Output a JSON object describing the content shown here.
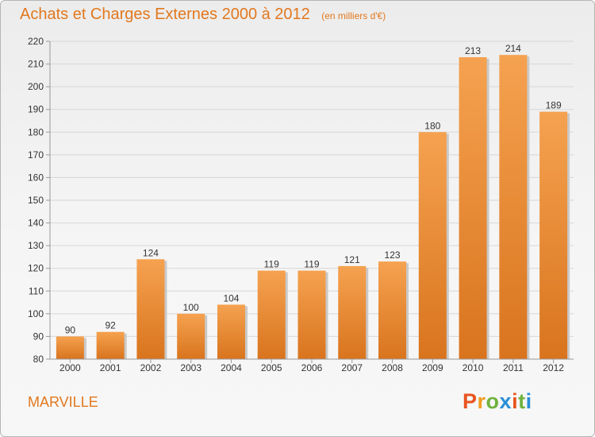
{
  "chart_data": {
    "type": "bar",
    "title": "Achats et Charges Externes 2000 à 2012",
    "subtitle": "(en milliers d'€)",
    "categories": [
      "2000",
      "2001",
      "2002",
      "2003",
      "2004",
      "2005",
      "2006",
      "2007",
      "2008",
      "2009",
      "2010",
      "2011",
      "2012"
    ],
    "values": [
      90,
      92,
      124,
      100,
      104,
      119,
      119,
      121,
      123,
      180,
      213,
      214,
      189
    ],
    "ylim": [
      80,
      220
    ],
    "yticks": [
      80,
      90,
      100,
      110,
      120,
      130,
      140,
      150,
      160,
      170,
      180,
      190,
      200,
      210,
      220
    ],
    "grid": true,
    "bar_color_top": "#f5a250",
    "bar_color_bottom": "#d9741e"
  },
  "footer": {
    "place": "MARVILLE",
    "logo_letters": [
      {
        "ch": "P",
        "color": "#e8541f"
      },
      {
        "ch": "r",
        "color": "#f29c1f"
      },
      {
        "ch": "o",
        "color": "#6fb23e"
      },
      {
        "ch": "x",
        "color": "#2a8fd6"
      },
      {
        "ch": "i",
        "color": "#e8541f"
      },
      {
        "ch": "t",
        "color": "#6fb23e"
      },
      {
        "ch": "i",
        "color": "#2a8fd6"
      }
    ]
  }
}
